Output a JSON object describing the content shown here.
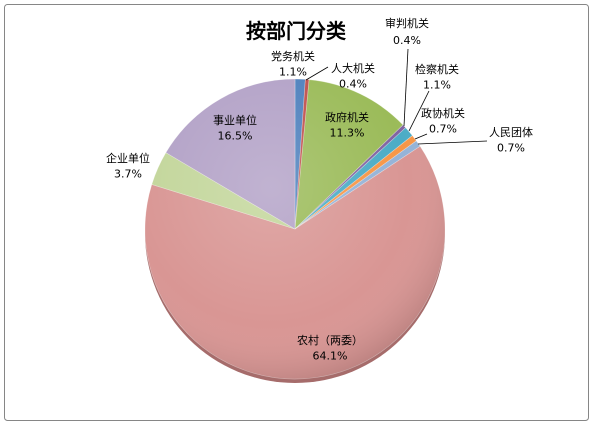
{
  "chart_data": {
    "type": "pie",
    "title": "按部门分类",
    "categories": [
      "党务机关",
      "人大机关",
      "政府机关",
      "审判机关",
      "检察机关",
      "政协机关",
      "人民团体",
      "农村（两委）",
      "企业单位",
      "事业单位"
    ],
    "values": [
      1.1,
      0.4,
      11.3,
      0.4,
      1.1,
      0.7,
      0.7,
      64.1,
      3.7,
      16.5
    ],
    "data_labels": [
      "1.1%",
      "0.4%",
      "11.3%",
      "0.4%",
      "1.1%",
      "0.7%",
      "0.7%",
      "64.1%",
      "3.7%",
      "16.5%"
    ],
    "colors": [
      "#4F81BD",
      "#C0504D",
      "#9BBB59",
      "#8064A2",
      "#4BACC6",
      "#F79646",
      "#95B3D7",
      "#D99694",
      "#C3D69B",
      "#B3A2C7"
    ],
    "legend": "none"
  }
}
